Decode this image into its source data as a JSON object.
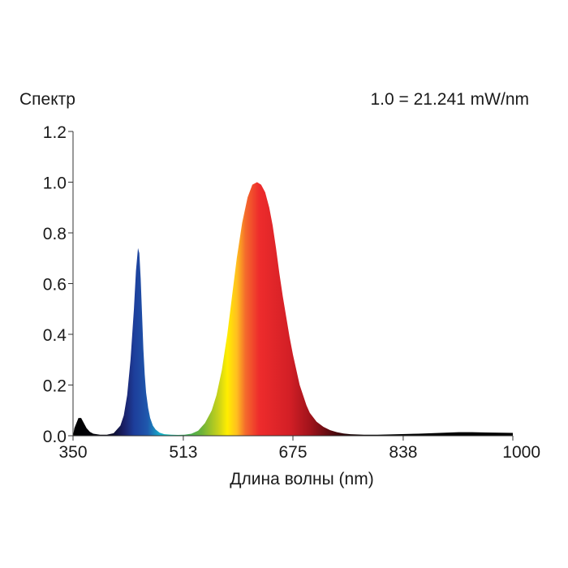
{
  "chart_data": {
    "type": "area",
    "title": "Спектр",
    "annotation": "1.0 = 21.241 mW/nm",
    "xlabel": "Длина волны (nm)",
    "ylabel": "",
    "xlim": [
      350,
      1000
    ],
    "ylim": [
      0,
      1.2
    ],
    "x_ticks": [
      "350",
      "513",
      "675",
      "838",
      "1000"
    ],
    "y_ticks": [
      "0.0",
      "0.2",
      "0.4",
      "0.6",
      "0.8",
      "1.0",
      "1.2"
    ],
    "grid": false,
    "fill": "wavelength-spectrum-colors",
    "series": [
      {
        "x": [
          350,
          352,
          355,
          358,
          362,
          366,
          370,
          375,
          380,
          390,
          400,
          410,
          420,
          425,
          430,
          435,
          440,
          443,
          446,
          448,
          450,
          452,
          454,
          456,
          458,
          461,
          464,
          468,
          472,
          478,
          485,
          495,
          505,
          515,
          525,
          535,
          545,
          555,
          562,
          570,
          578,
          585,
          592,
          600,
          608,
          615,
          622,
          628,
          634,
          640,
          645,
          650,
          655,
          660,
          665,
          670,
          675,
          680,
          685,
          690,
          695,
          700,
          710,
          720,
          730,
          740,
          750,
          760,
          780,
          800,
          830,
          860,
          900,
          920,
          940,
          960,
          980,
          1000
        ],
        "y": [
          0.0,
          0.03,
          0.05,
          0.07,
          0.07,
          0.05,
          0.03,
          0.015,
          0.008,
          0.004,
          0.004,
          0.01,
          0.04,
          0.08,
          0.16,
          0.3,
          0.5,
          0.65,
          0.74,
          0.72,
          0.62,
          0.48,
          0.34,
          0.24,
          0.17,
          0.11,
          0.07,
          0.04,
          0.025,
          0.012,
          0.006,
          0.004,
          0.003,
          0.004,
          0.008,
          0.02,
          0.05,
          0.1,
          0.16,
          0.26,
          0.4,
          0.55,
          0.7,
          0.84,
          0.94,
          0.99,
          1.0,
          0.99,
          0.96,
          0.9,
          0.83,
          0.74,
          0.64,
          0.55,
          0.47,
          0.39,
          0.32,
          0.26,
          0.2,
          0.16,
          0.12,
          0.09,
          0.055,
          0.035,
          0.022,
          0.014,
          0.009,
          0.006,
          0.004,
          0.004,
          0.006,
          0.008,
          0.012,
          0.014,
          0.014,
          0.013,
          0.012,
          0.011
        ]
      }
    ]
  }
}
